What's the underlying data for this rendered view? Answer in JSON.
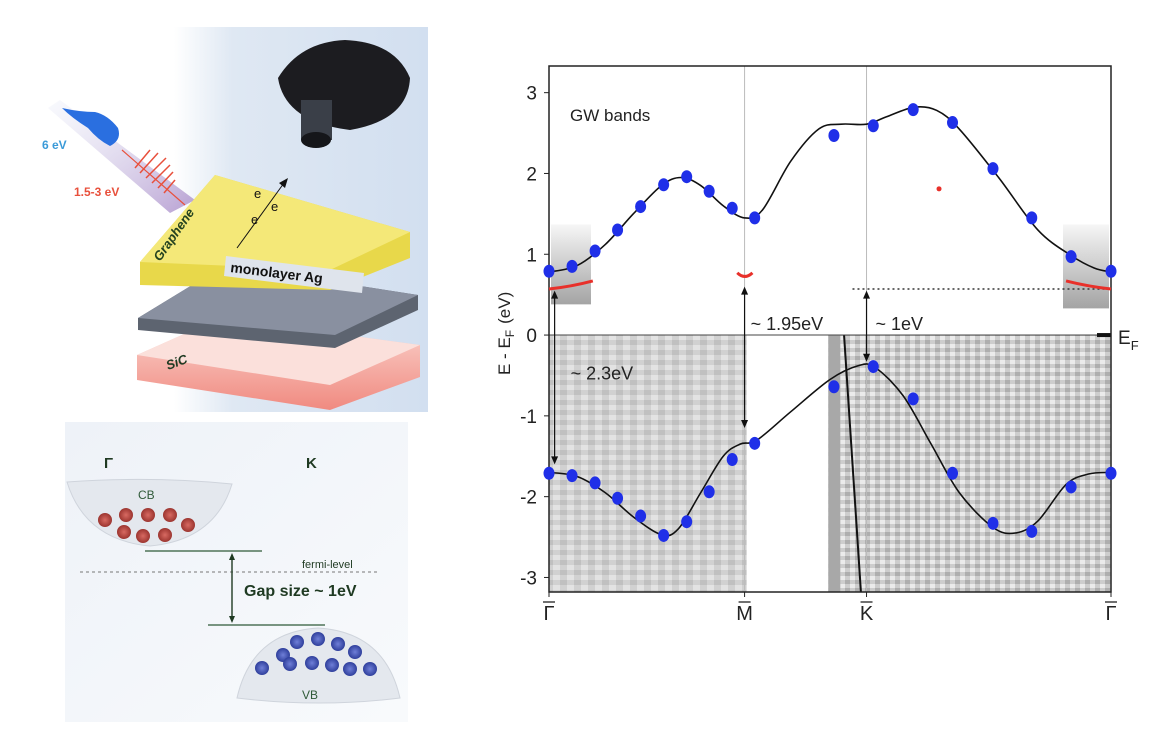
{
  "setup_panel": {
    "pump_label": "6 eV",
    "probe_label": "1.5-3 eV",
    "graphene_label": "Graphene",
    "ag_label": "monolayer Ag",
    "sic_label": "SiC",
    "electron_labels": [
      "e",
      "e",
      "e"
    ],
    "colors": {
      "pump": "#2a6fe0",
      "probe": "#e8503c",
      "graphene": "#f2e36a",
      "ag": "#5d6470",
      "sic": "#f6b4ac"
    }
  },
  "schematic_panel": {
    "gamma_label": "Γ",
    "k_label": "K",
    "cb_label": "CB",
    "vb_label": "VB",
    "fermi_label": "fermi-level",
    "gap_label": "Gap size ~ 1eV",
    "colors": {
      "cb_dots": "#b8433c",
      "vb_dots": "#3f4fb8",
      "text": "#1f4a2a"
    }
  },
  "chart_data": {
    "type": "line",
    "title": "GW bands",
    "ylabel": "E - E",
    "ylabel_sub": "F",
    "ylabel_unit": "(eV)",
    "ylim": [
      -3.18,
      3.33
    ],
    "yticks": [
      3,
      2,
      1,
      0,
      -1,
      -2,
      -3
    ],
    "xticks": [
      {
        "label": "Γ",
        "k": 0
      },
      {
        "label": "M",
        "k": 0.348
      },
      {
        "label": "K",
        "k": 0.565
      },
      {
        "label": "Γ",
        "k": 1
      }
    ],
    "ef_label": "E",
    "ef_sub": "F",
    "grid": false,
    "series": [
      {
        "band": "conduction",
        "marker_color": "#1f2fe8",
        "k": [
          0,
          0.041,
          0.082,
          0.122,
          0.163,
          0.204,
          0.245,
          0.285,
          0.326,
          0.366,
          0.507,
          0.577,
          0.648,
          0.718,
          0.79,
          0.859,
          0.929,
          1
        ],
        "E": [
          0.79,
          0.85,
          1.04,
          1.3,
          1.59,
          1.86,
          1.96,
          1.78,
          1.57,
          1.45,
          2.47,
          2.59,
          2.79,
          2.63,
          2.06,
          1.45,
          0.97,
          0.79
        ]
      },
      {
        "band": "valence",
        "marker_color": "#1f2fe8",
        "k": [
          0,
          0.041,
          0.082,
          0.122,
          0.163,
          0.204,
          0.245,
          0.285,
          0.326,
          0.366,
          0.507,
          0.577,
          0.648,
          0.718,
          0.79,
          0.859,
          0.929,
          1
        ],
        "E": [
          -1.71,
          -1.74,
          -1.83,
          -2.02,
          -2.24,
          -2.48,
          -2.31,
          -1.94,
          -1.54,
          -1.34,
          -0.64,
          -0.39,
          -0.79,
          -1.71,
          -2.33,
          -2.43,
          -1.88,
          -1.71
        ]
      }
    ],
    "fit_curves": [
      {
        "k": [
          0,
          0.05,
          0.1,
          0.15,
          0.2,
          0.235,
          0.27,
          0.31,
          0.348,
          0.38,
          0.43,
          0.48,
          0.52,
          0.565,
          0.6,
          0.65,
          0.69,
          0.73,
          0.8,
          0.87,
          0.93,
          0.97,
          1
        ],
        "E": [
          0.78,
          0.86,
          1.12,
          1.5,
          1.85,
          1.95,
          1.85,
          1.6,
          1.45,
          1.55,
          2.15,
          2.55,
          2.61,
          2.61,
          2.7,
          2.82,
          2.78,
          2.55,
          1.95,
          1.3,
          0.98,
          0.83,
          0.78
        ]
      },
      {
        "k": [
          0,
          0.05,
          0.1,
          0.15,
          0.2,
          0.23,
          0.27,
          0.31,
          0.34,
          0.37,
          0.43,
          0.5,
          0.55,
          0.58,
          0.63,
          0.68,
          0.73,
          0.79,
          0.83,
          0.87,
          0.92,
          0.96,
          1
        ],
        "E": [
          -1.7,
          -1.75,
          -1.95,
          -2.25,
          -2.47,
          -2.4,
          -1.95,
          -1.5,
          -1.35,
          -1.3,
          -0.95,
          -0.55,
          -0.38,
          -0.4,
          -0.75,
          -1.35,
          -1.95,
          -2.38,
          -2.45,
          -2.3,
          -1.85,
          -1.72,
          -1.7
        ]
      }
    ],
    "annotations": [
      {
        "text": "~ 2.3eV",
        "k": 0.01,
        "from": 0.55,
        "to": -1.6
      },
      {
        "text": "~ 1.95eV",
        "k": 0.348,
        "from": 0.6,
        "to": -1.15
      },
      {
        "text": "~ 1eV",
        "k": 0.565,
        "from": 0.55,
        "to": -0.33
      }
    ],
    "cbm_level": 0.57,
    "red_point": {
      "k": 0.694,
      "E": 1.81
    },
    "colors": {
      "curve": "#111111",
      "markers": "#1f2fe8",
      "red": "#e8302a"
    }
  }
}
